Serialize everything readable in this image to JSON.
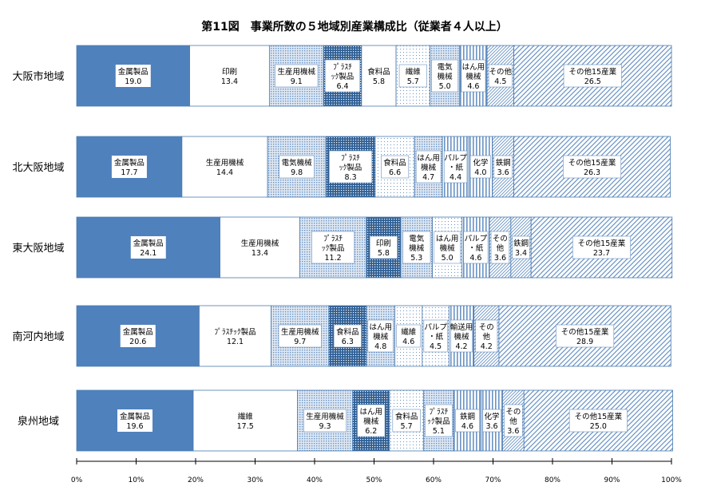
{
  "chart_data": {
    "type": "bar",
    "orientation": "horizontal",
    "stacked": "percent",
    "title": "第11図　事業所数の５地域別産業構成比（従業者４人以上）",
    "xlim": [
      0,
      100
    ],
    "x_ticks": [
      "0%",
      "10%",
      "20%",
      "30%",
      "40%",
      "50%",
      "60%",
      "70%",
      "80%",
      "90%",
      "100%"
    ],
    "grid": false,
    "legend": "none",
    "rows": [
      {
        "region": "大阪市地域",
        "segments": [
          {
            "name": "金属製品",
            "value": 19.0,
            "pattern": "solid"
          },
          {
            "name": "印刷",
            "value": 13.4,
            "pattern": "white"
          },
          {
            "name": "生産用機械",
            "value": 9.1,
            "pattern": "dots-blue"
          },
          {
            "name": "ﾌﾟﾗｽﾁｯｸ製品",
            "value": 6.4,
            "pattern": "dark-dots"
          },
          {
            "name": "食料品",
            "value": 5.8,
            "pattern": "white"
          },
          {
            "name": "繊維",
            "value": 5.7,
            "pattern": "sparse-dots"
          },
          {
            "name": "電気機械",
            "value": 5.0,
            "pattern": "dots-blue"
          },
          {
            "name": "はん用機械",
            "value": 4.6,
            "pattern": "vlines"
          },
          {
            "name": "その他",
            "value": 4.5,
            "pattern": "hatch-light"
          },
          {
            "name": "その他15産業",
            "value": 26.5,
            "pattern": "diag"
          }
        ]
      },
      {
        "region": "北大阪地域",
        "segments": [
          {
            "name": "金属製品",
            "value": 17.7,
            "pattern": "solid"
          },
          {
            "name": "生産用機械",
            "value": 14.4,
            "pattern": "white"
          },
          {
            "name": "電気機械",
            "value": 9.8,
            "pattern": "dots-blue"
          },
          {
            "name": "ﾌﾟﾗｽﾁｯｸ製品",
            "value": 8.3,
            "pattern": "dark-dots"
          },
          {
            "name": "食料品",
            "value": 6.6,
            "pattern": "sparse-dots"
          },
          {
            "name": "はん用機械",
            "value": 4.7,
            "pattern": "dots-blue"
          },
          {
            "name": "パルプ・紙",
            "value": 4.4,
            "pattern": "vlines"
          },
          {
            "name": "化学",
            "value": 4.0,
            "pattern": "vlines"
          },
          {
            "name": "鉄鋼",
            "value": 3.6,
            "pattern": "hatch-light"
          },
          {
            "name": "その他15産業",
            "value": 26.3,
            "pattern": "diag"
          }
        ]
      },
      {
        "region": "東大阪地域",
        "segments": [
          {
            "name": "金属製品",
            "value": 24.1,
            "pattern": "solid"
          },
          {
            "name": "生産用機械",
            "value": 13.4,
            "pattern": "white"
          },
          {
            "name": "ﾌﾟﾗｽﾁｯｸ製品",
            "value": 11.2,
            "pattern": "dots-blue"
          },
          {
            "name": "印刷",
            "value": 5.8,
            "pattern": "dark-dots"
          },
          {
            "name": "電気機械",
            "value": 5.3,
            "pattern": "dots-blue"
          },
          {
            "name": "はん用機械",
            "value": 5.0,
            "pattern": "sparse-dots"
          },
          {
            "name": "パルプ・紙",
            "value": 4.6,
            "pattern": "vlines"
          },
          {
            "name": "その他",
            "value": 3.6,
            "pattern": "hatch-light"
          },
          {
            "name": "鉄鋼",
            "value": 3.4,
            "pattern": "hatch-light"
          },
          {
            "name": "その他15産業",
            "value": 23.7,
            "pattern": "diag"
          }
        ]
      },
      {
        "region": "南河内地域",
        "segments": [
          {
            "name": "金属製品",
            "value": 20.6,
            "pattern": "solid"
          },
          {
            "name": "ﾌﾟﾗｽﾁｯｸ製品",
            "value": 12.1,
            "pattern": "white"
          },
          {
            "name": "生産用機械",
            "value": 9.7,
            "pattern": "dots-blue"
          },
          {
            "name": "食料品",
            "value": 6.3,
            "pattern": "dark-dots"
          },
          {
            "name": "はん用機械",
            "value": 4.8,
            "pattern": "dots-blue"
          },
          {
            "name": "繊維",
            "value": 4.6,
            "pattern": "sparse-dots"
          },
          {
            "name": "パルプ・紙",
            "value": 4.5,
            "pattern": "sparse-dots"
          },
          {
            "name": "輸送用機械",
            "value": 4.2,
            "pattern": "vlines"
          },
          {
            "name": "その他",
            "value": 4.2,
            "pattern": "hatch-light"
          },
          {
            "name": "その他15産業",
            "value": 28.9,
            "pattern": "diag"
          }
        ]
      },
      {
        "region": "泉州地域",
        "segments": [
          {
            "name": "金属製品",
            "value": 19.6,
            "pattern": "solid"
          },
          {
            "name": "繊維",
            "value": 17.5,
            "pattern": "white"
          },
          {
            "name": "生産用機械",
            "value": 9.3,
            "pattern": "dots-blue"
          },
          {
            "name": "はん用機械",
            "value": 6.2,
            "pattern": "dark-dots"
          },
          {
            "name": "食料品",
            "value": 5.7,
            "pattern": "sparse-dots"
          },
          {
            "name": "ﾌﾟﾗｽﾁｯｸ製品",
            "value": 5.1,
            "pattern": "dots-blue"
          },
          {
            "name": "鉄鋼",
            "value": 4.6,
            "pattern": "vlines"
          },
          {
            "name": "化学",
            "value": 3.6,
            "pattern": "vlines"
          },
          {
            "name": "その他",
            "value": 3.6,
            "pattern": "hatch-light"
          },
          {
            "name": "その他15産業",
            "value": 25.0,
            "pattern": "diag"
          }
        ]
      }
    ]
  },
  "colors": {
    "solid": "#4f81bd",
    "border": "#4a7ab0",
    "dark": "#2f5f94",
    "accent": "#6a93c4",
    "axis": "#000000"
  }
}
